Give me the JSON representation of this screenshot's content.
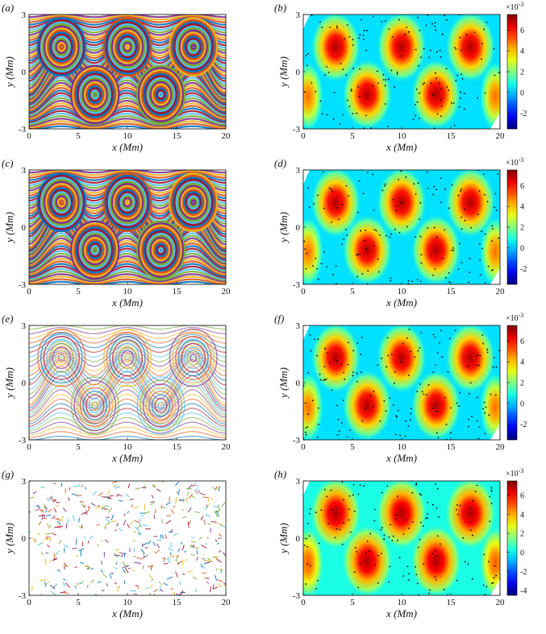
{
  "chart_data": [
    {
      "panel_label": "(a)",
      "type": "scatter",
      "description_type": "trajectory",
      "xlabel": "x (Mm)",
      "ylabel": "y (Mm)",
      "xlim": [
        0,
        20
      ],
      "ylim": [
        -3,
        3
      ],
      "xticks": [
        "0",
        "5",
        "10",
        "15",
        "20"
      ],
      "yticks": [
        "-3",
        "0",
        "3"
      ],
      "density": "high",
      "vortices": [
        {
          "x": 3.3,
          "y": 1.3,
          "sign": 1
        },
        {
          "x": 10,
          "y": 1.3,
          "sign": 1
        },
        {
          "x": 16.7,
          "y": 1.3,
          "sign": 1
        },
        {
          "x": 6.7,
          "y": -1.2,
          "sign": -1
        },
        {
          "x": 13.4,
          "y": -1.2,
          "sign": -1
        }
      ]
    },
    {
      "panel_label": "(b)",
      "type": "heatmap",
      "xlabel": "x (Mm)",
      "ylabel": "y (Mm)",
      "xlim": [
        0,
        20
      ],
      "ylim": [
        -3,
        3
      ],
      "xticks": [
        "0",
        "5",
        "10",
        "15",
        "20"
      ],
      "yticks": [
        "-3",
        "0",
        "3"
      ],
      "colorbar": {
        "ticks": [
          "6",
          "4",
          "2",
          "0",
          "-2"
        ],
        "values": [
          6,
          4,
          2,
          0,
          -2
        ],
        "range": [
          -3.5,
          7.5
        ],
        "exponent": "×10",
        "exponent_power": "-3"
      },
      "peaks": [
        {
          "x": 3.3,
          "y": 1.3,
          "value": 7
        },
        {
          "x": 10,
          "y": 1.3,
          "value": 7
        },
        {
          "x": 17,
          "y": 1.3,
          "value": 7
        },
        {
          "x": 6.5,
          "y": -1.2,
          "value": 7
        },
        {
          "x": 13.5,
          "y": -1.2,
          "value": 7
        },
        {
          "x": 0.5,
          "y": -1.3,
          "value": 5
        },
        {
          "x": 19.5,
          "y": -1.3,
          "value": 5
        }
      ]
    },
    {
      "panel_label": "(c)",
      "type": "scatter",
      "description_type": "trajectory",
      "xlabel": "x (Mm)",
      "ylabel": "y (Mm)",
      "xlim": [
        0,
        20
      ],
      "ylim": [
        -3,
        3
      ],
      "xticks": [
        "0",
        "5",
        "10",
        "15",
        "20"
      ],
      "yticks": [
        "-3",
        "0",
        "3"
      ],
      "density": "high",
      "vortices": [
        {
          "x": 3.3,
          "y": 1.3,
          "sign": 1
        },
        {
          "x": 10,
          "y": 1.3,
          "sign": 1
        },
        {
          "x": 16.7,
          "y": 1.3,
          "sign": 1
        },
        {
          "x": 6.7,
          "y": -1.2,
          "sign": -1
        },
        {
          "x": 13.4,
          "y": -1.2,
          "sign": -1
        }
      ]
    },
    {
      "panel_label": "(d)",
      "type": "heatmap",
      "xlabel": "x (Mm)",
      "ylabel": "y (Mm)",
      "xlim": [
        0,
        20
      ],
      "ylim": [
        -3,
        3
      ],
      "xticks": [
        "0",
        "5",
        "10",
        "15",
        "20"
      ],
      "yticks": [
        "-3",
        "0",
        "3"
      ],
      "colorbar": {
        "ticks": [
          "6",
          "4",
          "2",
          "0",
          "-2"
        ],
        "values": [
          6,
          4,
          2,
          0,
          -2
        ],
        "range": [
          -3.5,
          7.5
        ],
        "exponent": "×10",
        "exponent_power": "-3"
      },
      "peaks": [
        {
          "x": 3.3,
          "y": 1.3,
          "value": 7
        },
        {
          "x": 10,
          "y": 1.3,
          "value": 7
        },
        {
          "x": 17,
          "y": 1.3,
          "value": 7
        },
        {
          "x": 6.5,
          "y": -1.2,
          "value": 7
        },
        {
          "x": 13.5,
          "y": -1.2,
          "value": 7
        },
        {
          "x": 0.5,
          "y": -1.3,
          "value": 5
        },
        {
          "x": 19.5,
          "y": -1.3,
          "value": 5
        }
      ]
    },
    {
      "panel_label": "(e)",
      "type": "scatter",
      "description_type": "trajectory",
      "xlabel": "x (Mm)",
      "ylabel": "y (Mm)",
      "xlim": [
        0,
        20
      ],
      "ylim": [
        -3,
        3
      ],
      "xticks": [
        "0",
        "5",
        "10",
        "15",
        "20"
      ],
      "yticks": [
        "-3",
        "0",
        "3"
      ],
      "density": "medium",
      "vortices": [
        {
          "x": 3.3,
          "y": 1.3,
          "sign": 1
        },
        {
          "x": 10,
          "y": 1.3,
          "sign": 1
        },
        {
          "x": 16.7,
          "y": 1.3,
          "sign": 1
        },
        {
          "x": 6.7,
          "y": -1.2,
          "sign": -1
        },
        {
          "x": 13.4,
          "y": -1.2,
          "sign": -1
        }
      ]
    },
    {
      "panel_label": "(f)",
      "type": "heatmap",
      "xlabel": "x (Mm)",
      "ylabel": "y (Mm)",
      "xlim": [
        0,
        20
      ],
      "ylim": [
        -3,
        3
      ],
      "xticks": [
        "0",
        "5",
        "10",
        "15",
        "20"
      ],
      "yticks": [
        "-3",
        "0",
        "3"
      ],
      "colorbar": {
        "ticks": [
          "6",
          "4",
          "2",
          "0",
          "-2"
        ],
        "values": [
          6,
          4,
          2,
          0,
          -2
        ],
        "range": [
          -3.5,
          7.5
        ],
        "exponent": "×10",
        "exponent_power": "-3"
      },
      "peaks": [
        {
          "x": 3.3,
          "y": 1.3,
          "value": 7
        },
        {
          "x": 10,
          "y": 1.3,
          "value": 7
        },
        {
          "x": 17,
          "y": 1.3,
          "value": 7
        },
        {
          "x": 6.5,
          "y": -1.2,
          "value": 7
        },
        {
          "x": 13.5,
          "y": -1.2,
          "value": 7
        },
        {
          "x": 0.5,
          "y": -1.3,
          "value": 5
        },
        {
          "x": 19.5,
          "y": -1.3,
          "value": 5
        }
      ]
    },
    {
      "panel_label": "(g)",
      "type": "scatter",
      "description_type": "trajectory",
      "xlabel": "x (Mm)",
      "ylabel": "y (Mm)",
      "xlim": [
        0,
        20
      ],
      "ylim": [
        -3,
        3
      ],
      "xticks": [
        "0",
        "5",
        "10",
        "15",
        "20"
      ],
      "yticks": [
        "-3",
        "0",
        "3"
      ],
      "density": "sparse",
      "vortices": [
        {
          "x": 3.3,
          "y": 1.3,
          "sign": 1
        },
        {
          "x": 10,
          "y": 1.3,
          "sign": 1
        },
        {
          "x": 16.7,
          "y": 1.3,
          "sign": 1
        },
        {
          "x": 6.7,
          "y": -1.2,
          "sign": -1
        },
        {
          "x": 13.4,
          "y": -1.2,
          "sign": -1
        }
      ]
    },
    {
      "panel_label": "(h)",
      "type": "heatmap",
      "xlabel": "x (Mm)",
      "ylabel": "y (Mm)",
      "xlim": [
        0,
        20
      ],
      "ylim": [
        -3,
        3
      ],
      "xticks": [
        "0",
        "5",
        "10",
        "15",
        "20"
      ],
      "yticks": [
        "-3",
        "0",
        "3"
      ],
      "colorbar": {
        "ticks": [
          "6",
          "4",
          "2",
          "0",
          "-2",
          "-4"
        ],
        "values": [
          6,
          4,
          2,
          0,
          -2,
          -4
        ],
        "range": [
          -4.5,
          7.5
        ],
        "exponent": "×10",
        "exponent_power": "-3"
      },
      "peaks": [
        {
          "x": 3.3,
          "y": 1.3,
          "value": 7
        },
        {
          "x": 10,
          "y": 1.3,
          "value": 7
        },
        {
          "x": 17,
          "y": 1.3,
          "value": 7
        },
        {
          "x": 6.5,
          "y": -1.2,
          "value": 7
        },
        {
          "x": 13.5,
          "y": -1.2,
          "value": 7
        },
        {
          "x": 0.5,
          "y": -1.3,
          "value": 5
        },
        {
          "x": 19.5,
          "y": -1.3,
          "value": 5
        }
      ]
    }
  ],
  "colors": {
    "trajectory_palette": [
      "#0072bd",
      "#d95319",
      "#edb120",
      "#7e2f8e",
      "#77ac30",
      "#4dbeee",
      "#a2142f"
    ],
    "axis": "#000000",
    "background": "#ffffff"
  }
}
